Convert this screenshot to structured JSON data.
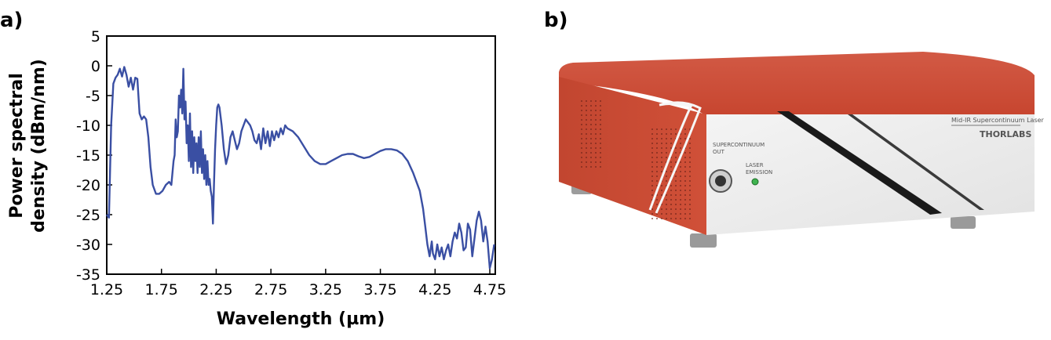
{
  "figure": {
    "panel_a_label": "a)",
    "panel_b_label": "b)"
  },
  "chart_data": {
    "type": "line",
    "title": "",
    "xlabel": "Wavelength (µm)",
    "ylabel_line1": "Power spectral",
    "ylabel_line2": "density (dBm/nm)",
    "xlim": [
      1.25,
      4.8
    ],
    "ylim": [
      -35,
      5
    ],
    "x_ticks": [
      1.25,
      1.75,
      2.25,
      2.75,
      3.25,
      3.75,
      4.25,
      4.75
    ],
    "x_tick_labels": [
      "1.25",
      "1.75",
      "2.25",
      "2.75",
      "3.25",
      "3.75",
      "4.25",
      "4.75"
    ],
    "y_ticks": [
      5,
      0,
      -5,
      -10,
      -15,
      -20,
      -25,
      -30,
      -35
    ],
    "y_tick_labels": [
      "5",
      "0",
      "-5",
      "-10",
      "-15",
      "-20",
      "-25",
      "-30",
      "-35"
    ],
    "grid": false,
    "series_color": "#3a4fa3",
    "series": [
      {
        "x": [
          1.25,
          1.27,
          1.29,
          1.31,
          1.33,
          1.35,
          1.37,
          1.39,
          1.41,
          1.43,
          1.45,
          1.47,
          1.49,
          1.51,
          1.53,
          1.55,
          1.57,
          1.59,
          1.61,
          1.63,
          1.65,
          1.67,
          1.7,
          1.73,
          1.76,
          1.79,
          1.82,
          1.84,
          1.86,
          1.87,
          1.88,
          1.89,
          1.9,
          1.91,
          1.92,
          1.93,
          1.94,
          1.95,
          1.96,
          1.97,
          1.98,
          1.99,
          2.0,
          2.01,
          2.02,
          2.03,
          2.04,
          2.05,
          2.06,
          2.07,
          2.08,
          2.09,
          2.1,
          2.11,
          2.12,
          2.13,
          2.14,
          2.15,
          2.16,
          2.17,
          2.18,
          2.19,
          2.2,
          2.21,
          2.22,
          2.23,
          2.24,
          2.25,
          2.26,
          2.27,
          2.28,
          2.3,
          2.32,
          2.34,
          2.36,
          2.38,
          2.4,
          2.42,
          2.44,
          2.46,
          2.48,
          2.5,
          2.52,
          2.54,
          2.56,
          2.58,
          2.6,
          2.62,
          2.64,
          2.66,
          2.68,
          2.7,
          2.72,
          2.74,
          2.76,
          2.78,
          2.8,
          2.82,
          2.84,
          2.86,
          2.88,
          2.9,
          2.95,
          3.0,
          3.05,
          3.1,
          3.15,
          3.2,
          3.25,
          3.3,
          3.35,
          3.4,
          3.45,
          3.5,
          3.55,
          3.6,
          3.65,
          3.7,
          3.75,
          3.8,
          3.85,
          3.9,
          3.95,
          4.0,
          4.05,
          4.08,
          4.11,
          4.14,
          4.16,
          4.18,
          4.2,
          4.22,
          4.23,
          4.24,
          4.25,
          4.27,
          4.29,
          4.31,
          4.33,
          4.35,
          4.37,
          4.39,
          4.41,
          4.43,
          4.45,
          4.47,
          4.49,
          4.51,
          4.53,
          4.55,
          4.57,
          4.59,
          4.61,
          4.63,
          4.65,
          4.67,
          4.69,
          4.71,
          4.73,
          4.75,
          4.77,
          4.79
        ],
        "y": [
          -25,
          -25.5,
          -10,
          -3,
          -2,
          -1.5,
          -0.5,
          -1.8,
          -0.2,
          -1.5,
          -3.5,
          -2,
          -4,
          -2,
          -2.2,
          -8,
          -9,
          -8.5,
          -9,
          -12,
          -17,
          -20,
          -21.5,
          -21.5,
          -21,
          -20,
          -19.5,
          -20,
          -16,
          -15,
          -9,
          -12,
          -11,
          -5,
          -7,
          -4,
          -8,
          -0.5,
          -9,
          -6,
          -13,
          -10,
          -16,
          -8,
          -17,
          -11,
          -18,
          -12,
          -16,
          -13,
          -18,
          -12,
          -17,
          -11,
          -18,
          -14,
          -19,
          -15,
          -20,
          -16,
          -20,
          -19,
          -21,
          -22,
          -26.5,
          -20,
          -14,
          -10,
          -7,
          -6.5,
          -7,
          -10,
          -14,
          -16.5,
          -15,
          -12,
          -11,
          -12.5,
          -14,
          -13,
          -11,
          -10,
          -9,
          -9.5,
          -10,
          -11,
          -12.5,
          -13,
          -11.5,
          -14,
          -10.5,
          -13,
          -11,
          -13.5,
          -11,
          -12.5,
          -11,
          -12,
          -10.5,
          -11.5,
          -10,
          -10.5,
          -11,
          -12,
          -13.5,
          -15,
          -16,
          -16.5,
          -16.5,
          -16,
          -15.5,
          -15,
          -14.8,
          -14.8,
          -15.2,
          -15.5,
          -15.3,
          -14.8,
          -14.3,
          -14,
          -14,
          -14.2,
          -14.8,
          -16,
          -18,
          -19.5,
          -21,
          -24,
          -27,
          -30,
          -32,
          -29.5,
          -31.5,
          -32,
          -32.5,
          -30,
          -32,
          -30.5,
          -32.5,
          -31,
          -30,
          -32,
          -29.5,
          -28,
          -29,
          -26.5,
          -28,
          -31,
          -30.5,
          -26.5,
          -27.5,
          -32,
          -29,
          -26,
          -24.5,
          -26,
          -29.5,
          -27,
          -29.5,
          -34,
          -32.5,
          -30
        ]
      }
    ]
  },
  "device": {
    "label_supercontinuum": "SUPERCONTINUUM",
    "label_out": "OUT",
    "label_laser": "LASER",
    "label_emission": "EMISSION",
    "label_product": "Mid-IR Supercontinuum Laser",
    "label_brand": "THORLABS"
  }
}
